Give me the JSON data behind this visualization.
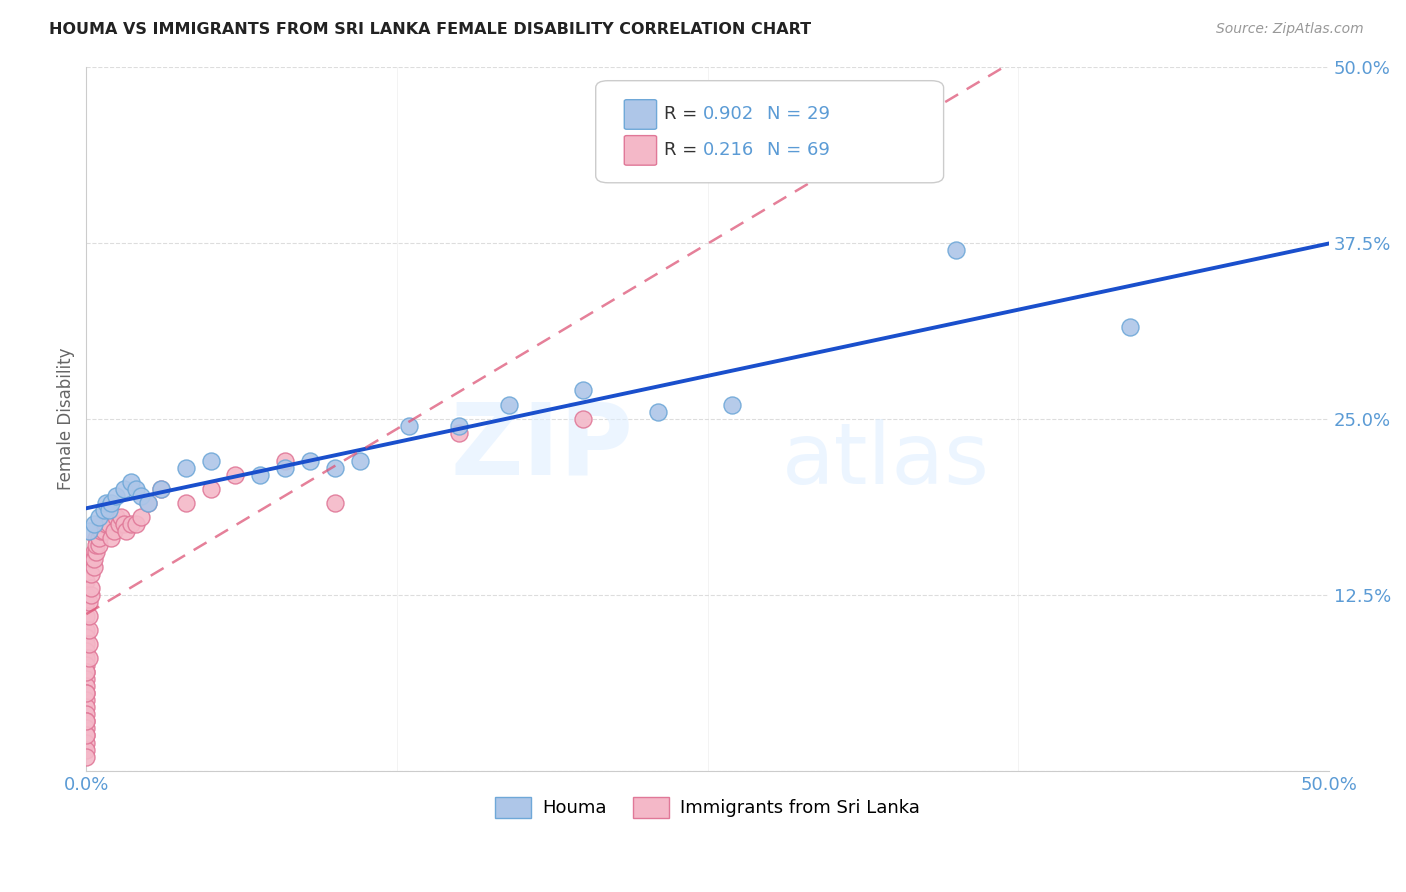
{
  "title": "HOUMA VS IMMIGRANTS FROM SRI LANKA FEMALE DISABILITY CORRELATION CHART",
  "source": "Source: ZipAtlas.com",
  "ylabel_label": "Female Disability",
  "xlim": [
    0.0,
    0.5
  ],
  "ylim": [
    0.0,
    0.5
  ],
  "xticks": [
    0.0,
    0.125,
    0.25,
    0.375,
    0.5
  ],
  "xticklabels": [
    "0.0%",
    "",
    "",
    "",
    "50.0%"
  ],
  "yticks": [
    0.0,
    0.125,
    0.25,
    0.375,
    0.5
  ],
  "yticklabels": [
    "",
    "12.5%",
    "25.0%",
    "37.5%",
    "50.0%"
  ],
  "houma_color": "#aec6e8",
  "houma_edge_color": "#6fa8d8",
  "sri_lanka_color": "#f4b8c8",
  "sri_lanka_edge_color": "#e07898",
  "houma_line_color": "#1a4fcc",
  "sri_lanka_line_color": "#dd5577",
  "houma_R": 0.902,
  "houma_N": 29,
  "sri_lanka_R": 0.216,
  "sri_lanka_N": 69,
  "watermark_zip": "ZIP",
  "watermark_atlas": "atlas",
  "houma_x": [
    0.001,
    0.003,
    0.005,
    0.007,
    0.008,
    0.009,
    0.01,
    0.012,
    0.015,
    0.018,
    0.02,
    0.022,
    0.025,
    0.03,
    0.04,
    0.05,
    0.07,
    0.08,
    0.09,
    0.1,
    0.11,
    0.13,
    0.15,
    0.17,
    0.2,
    0.23,
    0.26,
    0.35,
    0.42
  ],
  "houma_y": [
    0.17,
    0.175,
    0.18,
    0.185,
    0.19,
    0.185,
    0.19,
    0.195,
    0.2,
    0.205,
    0.2,
    0.195,
    0.19,
    0.2,
    0.215,
    0.22,
    0.21,
    0.215,
    0.22,
    0.215,
    0.22,
    0.245,
    0.245,
    0.26,
    0.27,
    0.255,
    0.26,
    0.37,
    0.315
  ],
  "sri_lanka_x": [
    0.0,
    0.0,
    0.0,
    0.0,
    0.0,
    0.0,
    0.0,
    0.0,
    0.0,
    0.0,
    0.0,
    0.0,
    0.0,
    0.0,
    0.0,
    0.0,
    0.0,
    0.0,
    0.0,
    0.0,
    0.0,
    0.0,
    0.0,
    0.0,
    0.0,
    0.0,
    0.0,
    0.001,
    0.001,
    0.001,
    0.001,
    0.001,
    0.002,
    0.002,
    0.002,
    0.002,
    0.003,
    0.003,
    0.003,
    0.004,
    0.004,
    0.004,
    0.005,
    0.005,
    0.006,
    0.006,
    0.007,
    0.007,
    0.008,
    0.009,
    0.01,
    0.011,
    0.012,
    0.013,
    0.014,
    0.015,
    0.016,
    0.018,
    0.02,
    0.022,
    0.025,
    0.03,
    0.04,
    0.05,
    0.06,
    0.08,
    0.1,
    0.15,
    0.2
  ],
  "sri_lanka_y": [
    0.135,
    0.125,
    0.12,
    0.11,
    0.1,
    0.095,
    0.09,
    0.085,
    0.08,
    0.075,
    0.07,
    0.065,
    0.06,
    0.055,
    0.05,
    0.045,
    0.04,
    0.035,
    0.03,
    0.025,
    0.02,
    0.015,
    0.01,
    0.025,
    0.035,
    0.055,
    0.07,
    0.08,
    0.09,
    0.1,
    0.11,
    0.12,
    0.125,
    0.13,
    0.14,
    0.15,
    0.145,
    0.155,
    0.15,
    0.155,
    0.165,
    0.16,
    0.16,
    0.165,
    0.17,
    0.175,
    0.175,
    0.17,
    0.175,
    0.175,
    0.165,
    0.17,
    0.18,
    0.175,
    0.18,
    0.175,
    0.17,
    0.175,
    0.175,
    0.18,
    0.19,
    0.2,
    0.19,
    0.2,
    0.21,
    0.22,
    0.19,
    0.24,
    0.25
  ],
  "background_color": "#ffffff",
  "grid_color": "#dddddd",
  "tick_color": "#5b9bd5",
  "legend_R_color": "#000000",
  "legend_val_color": "#5b9bd5",
  "legend_N_color": "#5b9bd5"
}
